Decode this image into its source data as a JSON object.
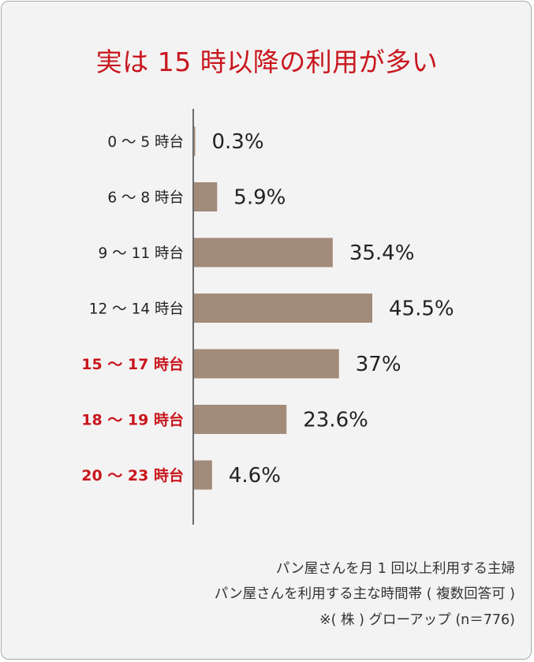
{
  "title": "実は 15 時以降の利用が多い",
  "colors": {
    "bar": "#a38b79",
    "highlight": "#c8161d",
    "text": "#222222",
    "axis": "#333333",
    "background": "#f4f3f3"
  },
  "chart_data": {
    "type": "bar",
    "orientation": "horizontal",
    "title": "実は 15 時以降の利用が多い",
    "categories": [
      "0 ～ 5 時台",
      "6 ～ 8 時台",
      "9 ～ 11 時台",
      "12 ～ 14 時台",
      "15 ～ 17 時台",
      "18 ～ 19 時台",
      "20 ～ 23 時台"
    ],
    "values": [
      0.3,
      5.9,
      35.4,
      45.5,
      37,
      23.6,
      4.6
    ],
    "value_labels": [
      "0.3%",
      "5.9%",
      "35.4%",
      "45.5%",
      "37%",
      "23.6%",
      "4.6%"
    ],
    "highlighted": [
      false,
      false,
      false,
      false,
      true,
      true,
      true
    ],
    "unit": "%",
    "xlim": [
      0,
      45.5
    ],
    "grid": false,
    "legend": "none"
  },
  "footnote": {
    "line1": "パン屋さんを月 1 回以上利用する主婦",
    "line2": "パン屋さんを利用する主な時間帯 ( 複数回答可 )",
    "line3": "※( 株 ) グローアップ (n＝776)"
  }
}
